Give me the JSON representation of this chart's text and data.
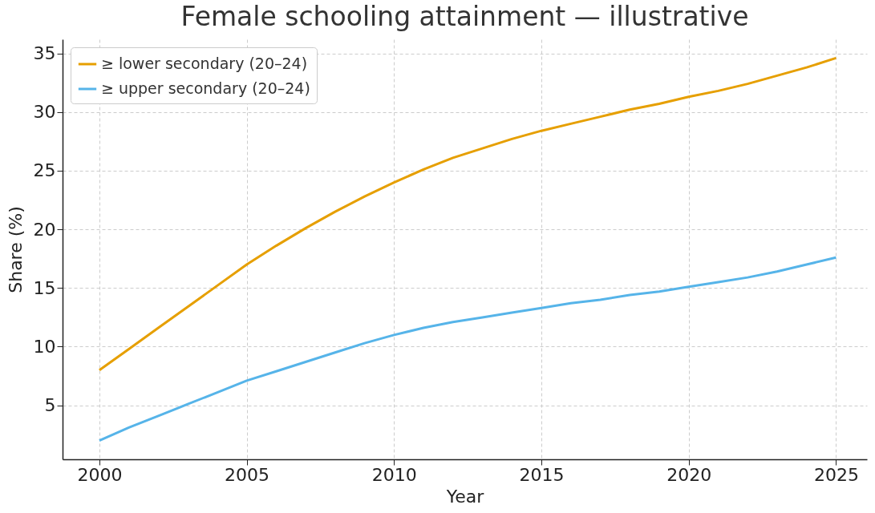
{
  "chart_data": {
    "type": "line",
    "title": "Female schooling attainment — illustrative",
    "xlabel": "Year",
    "ylabel": "Share (%)",
    "x": [
      2000,
      2001,
      2002,
      2003,
      2004,
      2005,
      2006,
      2007,
      2008,
      2009,
      2010,
      2011,
      2012,
      2013,
      2014,
      2015,
      2016,
      2017,
      2018,
      2019,
      2020,
      2021,
      2022,
      2023,
      2024,
      2025
    ],
    "series": [
      {
        "name": "≥ lower secondary (20–24)",
        "color": "#e69f00",
        "values": [
          8,
          9.8,
          11.6,
          13.4,
          15.2,
          17,
          18.6,
          20.1,
          21.5,
          22.8,
          24,
          25.1,
          26.1,
          26.9,
          27.7,
          28.4,
          29,
          29.6,
          30.2,
          30.7,
          31.3,
          31.8,
          32.4,
          33.1,
          33.8,
          34.6
        ]
      },
      {
        "name": "≥ upper secondary (20–24)",
        "color": "#56b4e9",
        "values": [
          2,
          3.1,
          4.1,
          5.1,
          6.1,
          7.1,
          7.9,
          8.7,
          9.5,
          10.3,
          11,
          11.6,
          12.1,
          12.5,
          12.9,
          13.3,
          13.7,
          14,
          14.4,
          14.7,
          15.1,
          15.5,
          15.9,
          16.4,
          17,
          17.6
        ]
      }
    ],
    "xlim": [
      1998.75,
      2026.05
    ],
    "xticks": [
      2000,
      2005,
      2010,
      2015,
      2020,
      2025
    ],
    "ylim": [
      0.4,
      36.2
    ],
    "yticks": [
      5,
      10,
      15,
      20,
      25,
      30,
      35
    ],
    "grid": true,
    "legend": "top left",
    "line_style": "solid"
  }
}
